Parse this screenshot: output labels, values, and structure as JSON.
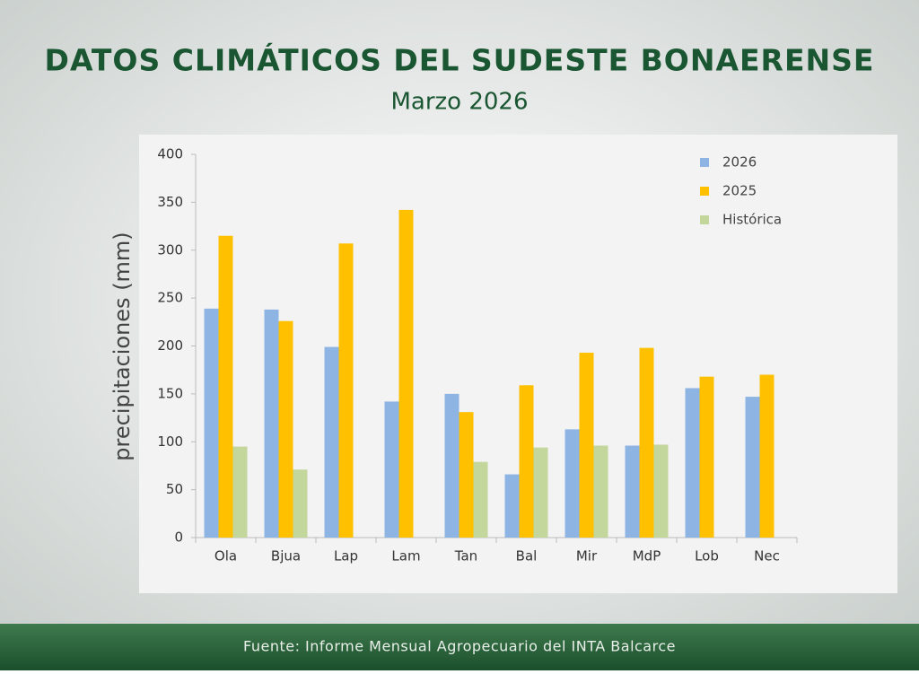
{
  "chart_data": {
    "type": "bar",
    "title": "DATOS CLIMÁTICOS DEL SUDESTE BONAERENSE",
    "subtitle": "Marzo 2026",
    "y_label": "precipitaciones (mm)",
    "categories": [
      "Ola",
      "Bjua",
      "Lap",
      "Lam",
      "Tan",
      "Bal",
      "Mir",
      "MdP",
      "Lob",
      "Nec"
    ],
    "series": [
      {
        "name": "2026",
        "color": "#8eb4e3",
        "values": [
          239,
          238,
          199,
          142,
          150,
          66,
          113,
          96,
          156,
          147
        ]
      },
      {
        "name": "2025",
        "color": "#ffc000",
        "values": [
          315,
          226,
          307,
          342,
          131,
          159,
          193,
          198,
          168,
          170
        ]
      },
      {
        "name": "Histórica",
        "color": "#c3d69b",
        "values": [
          95,
          71,
          null,
          null,
          79,
          94,
          96,
          97,
          null,
          null
        ]
      }
    ],
    "ylim": [
      0,
      400
    ],
    "yticks": [
      0,
      50,
      100,
      150,
      200,
      250,
      300,
      350,
      400
    ],
    "grid": false,
    "legend": "upper right",
    "source": "Fuente: Informe Mensual Agropecuario del INTA Balcarce"
  }
}
